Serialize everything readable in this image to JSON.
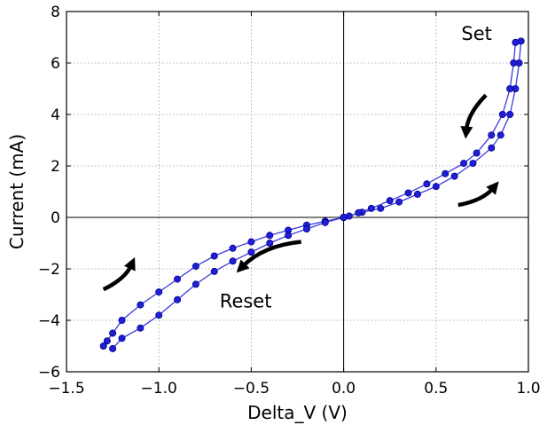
{
  "chart_data": {
    "type": "scatter",
    "title": "",
    "xlabel": "Delta_V (V)",
    "ylabel": "Current (mA)",
    "xlim": [
      -1.5,
      1.0
    ],
    "ylim": [
      -6,
      8
    ],
    "x_ticks": [
      -1.5,
      -1.0,
      -0.5,
      0.0,
      0.5,
      1.0
    ],
    "x_tick_labels": [
      "−1.5",
      "−1.0",
      "−0.5",
      "0.0",
      "0.5",
      "1.0"
    ],
    "y_ticks": [
      -6,
      -4,
      -2,
      0,
      2,
      4,
      6,
      8
    ],
    "y_tick_labels": [
      "−6",
      "−4",
      "−2",
      "0",
      "2",
      "4",
      "6",
      "8"
    ],
    "grid": true,
    "zero_lines": true,
    "marker_color": "#1f1fd6",
    "marker_edge_color": "#00008b",
    "line_color": "#3a3ae0",
    "series": [
      {
        "name": "positive loop outer",
        "x": [
          0.0,
          0.1,
          0.2,
          0.3,
          0.4,
          0.5,
          0.6,
          0.7,
          0.8,
          0.85,
          0.9,
          0.93,
          0.95,
          0.96
        ],
        "y": [
          0.0,
          0.2,
          0.35,
          0.6,
          0.9,
          1.2,
          1.6,
          2.1,
          2.7,
          3.2,
          4.0,
          5.0,
          6.0,
          6.85
        ]
      },
      {
        "name": "positive loop inner",
        "x": [
          0.93,
          0.92,
          0.9,
          0.86,
          0.8,
          0.72,
          0.65,
          0.55,
          0.45,
          0.35,
          0.25,
          0.15,
          0.08,
          0.03,
          0.0
        ],
        "y": [
          6.8,
          6.0,
          5.0,
          4.0,
          3.2,
          2.5,
          2.1,
          1.7,
          1.3,
          0.95,
          0.65,
          0.35,
          0.18,
          0.05,
          0.0
        ]
      },
      {
        "name": "negative loop outer",
        "x": [
          0.0,
          -0.1,
          -0.2,
          -0.3,
          -0.4,
          -0.5,
          -0.6,
          -0.7,
          -0.8,
          -0.9,
          -1.0,
          -1.1,
          -1.2,
          -1.25,
          -1.28,
          -1.3
        ],
        "y": [
          0.0,
          -0.15,
          -0.3,
          -0.5,
          -0.7,
          -0.95,
          -1.2,
          -1.5,
          -1.9,
          -2.4,
          -2.9,
          -3.4,
          -4.0,
          -4.5,
          -4.8,
          -5.0
        ]
      },
      {
        "name": "negative loop inner",
        "x": [
          -1.25,
          -1.2,
          -1.1,
          -1.0,
          -0.9,
          -0.8,
          -0.7,
          -0.6,
          -0.5,
          -0.4,
          -0.3,
          -0.2,
          -0.1,
          0.0
        ],
        "y": [
          -5.1,
          -4.7,
          -4.3,
          -3.8,
          -3.2,
          -2.6,
          -2.1,
          -1.7,
          -1.35,
          -1.0,
          -0.7,
          -0.45,
          -0.2,
          0.0
        ]
      }
    ],
    "annotations": [
      {
        "text": "Set",
        "x": 0.72,
        "y": 6.9
      },
      {
        "text": "Reset",
        "x": -0.53,
        "y": -3.5
      }
    ],
    "arrows": [
      {
        "name": "set-down",
        "x1": 0.77,
        "y1": 4.75,
        "x2": 0.66,
        "y2": 3.05
      },
      {
        "name": "set-up",
        "x1": 0.62,
        "y1": 0.48,
        "x2": 0.84,
        "y2": 1.4
      },
      {
        "name": "reset-left",
        "x1": -0.23,
        "y1": -0.95,
        "x2": -0.58,
        "y2": -2.15
      },
      {
        "name": "reset-up",
        "x1": -1.3,
        "y1": -2.8,
        "x2": -1.13,
        "y2": -1.55
      }
    ]
  }
}
